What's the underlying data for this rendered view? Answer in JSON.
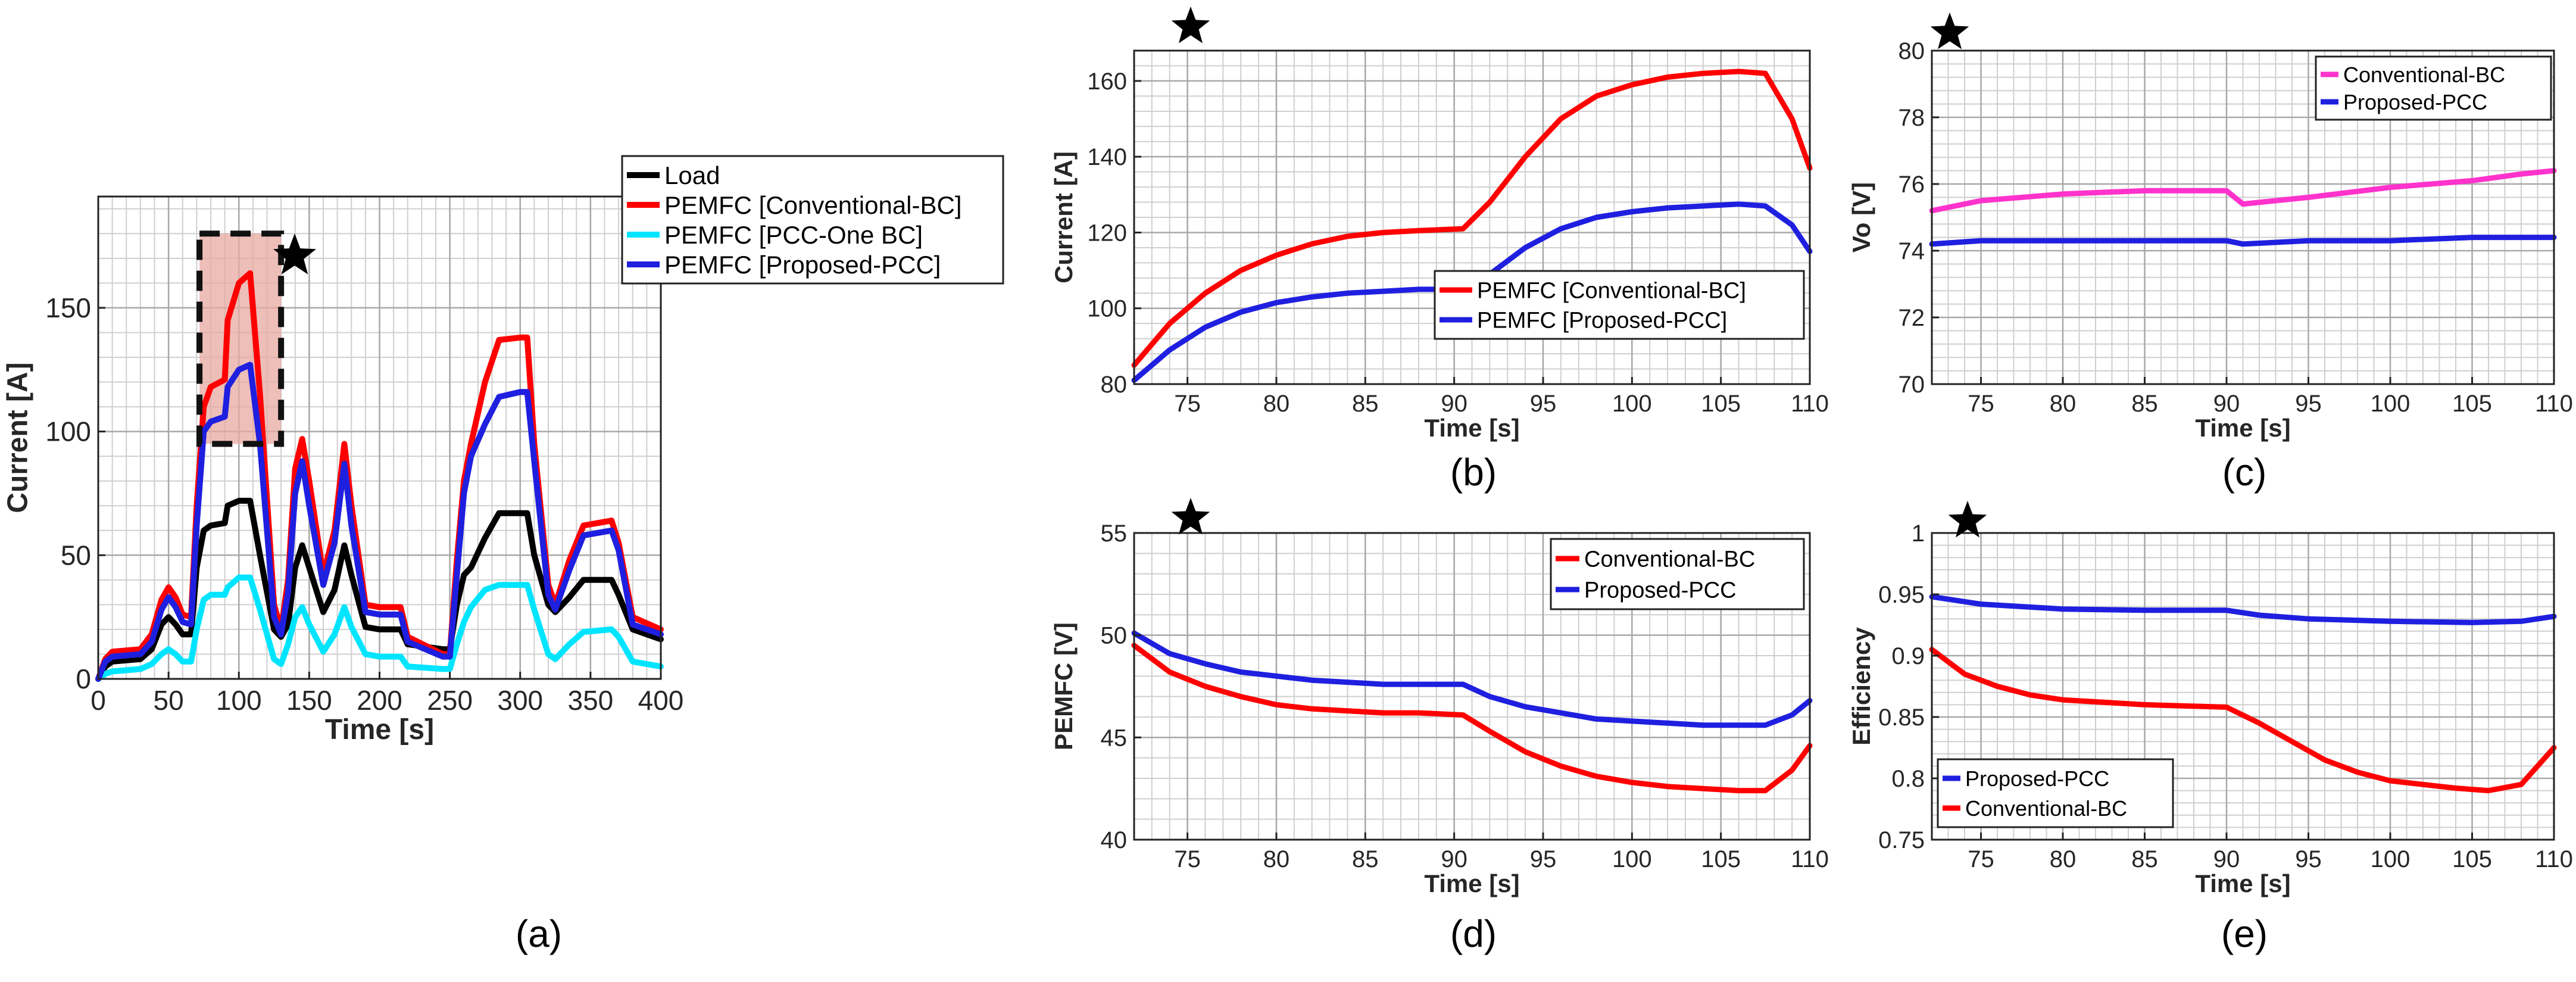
{
  "chart_data": [
    {
      "panel_label": "(a)",
      "type": "line",
      "xlabel": "Time [s]",
      "ylabel": "Current [A]",
      "xlim": [
        0,
        400
      ],
      "ylim": [
        0,
        195
      ],
      "xticks": [
        0,
        50,
        100,
        150,
        200,
        250,
        300,
        350,
        400
      ],
      "yticks": [
        0,
        50,
        100,
        150
      ],
      "grid": true,
      "legend_position": "top-right",
      "annotation": "dashed box with star highlighting 72–130 s, 95–180 A",
      "series": [
        {
          "name": "Load",
          "color": "#000000",
          "x": [
            0,
            5,
            10,
            30,
            38,
            45,
            50,
            55,
            60,
            66,
            70,
            75,
            80,
            90,
            92,
            100,
            108,
            115,
            125,
            130,
            135,
            140,
            145,
            150,
            160,
            168,
            175,
            180,
            190,
            200,
            215,
            220,
            245,
            250,
            255,
            260,
            265,
            275,
            285,
            300,
            305,
            310,
            320,
            325,
            335,
            345,
            365,
            370,
            380,
            400
          ],
          "y": [
            0,
            5,
            7,
            8,
            12,
            22,
            25,
            22,
            18,
            18,
            45,
            60,
            62,
            63,
            70,
            72,
            72,
            50,
            20,
            17,
            22,
            45,
            54,
            45,
            27,
            36,
            54,
            42,
            21,
            20,
            20,
            14,
            12,
            12,
            30,
            42,
            45,
            57,
            67,
            67,
            67,
            50,
            30,
            27,
            33,
            40,
            40,
            34,
            20,
            16
          ]
        },
        {
          "name": "PEMFC [Conventional-BC]",
          "color": "#ff0000",
          "x": [
            0,
            5,
            10,
            30,
            38,
            45,
            50,
            55,
            60,
            66,
            70,
            75,
            80,
            90,
            92,
            100,
            108,
            115,
            125,
            130,
            135,
            140,
            145,
            150,
            160,
            168,
            175,
            180,
            190,
            200,
            215,
            220,
            245,
            250,
            255,
            260,
            265,
            275,
            285,
            300,
            305,
            310,
            320,
            325,
            335,
            345,
            365,
            370,
            380,
            400
          ],
          "y": [
            0,
            8,
            11,
            12,
            18,
            32,
            37,
            33,
            26,
            25,
            70,
            110,
            118,
            121,
            145,
            160,
            164,
            115,
            30,
            20,
            40,
            85,
            97,
            80,
            42,
            60,
            95,
            70,
            30,
            29,
            29,
            17,
            10,
            10,
            48,
            80,
            95,
            120,
            137,
            138,
            138,
            95,
            38,
            30,
            48,
            62,
            64,
            55,
            25,
            20
          ]
        },
        {
          "name": "PEMFC [PCC-One BC]",
          "color": "#00e5ff",
          "x": [
            0,
            5,
            10,
            30,
            38,
            45,
            50,
            55,
            60,
            66,
            70,
            75,
            80,
            90,
            92,
            100,
            108,
            115,
            125,
            130,
            135,
            140,
            145,
            150,
            160,
            168,
            175,
            180,
            190,
            200,
            215,
            220,
            245,
            250,
            255,
            260,
            265,
            275,
            285,
            300,
            305,
            310,
            320,
            325,
            335,
            345,
            365,
            370,
            380,
            400
          ],
          "y": [
            0,
            2,
            3,
            4,
            6,
            10,
            12,
            10,
            7,
            7,
            20,
            32,
            34,
            34,
            37,
            41,
            41,
            28,
            8,
            6,
            14,
            25,
            29,
            22,
            11,
            18,
            29,
            21,
            10,
            9,
            9,
            5,
            4,
            4,
            14,
            23,
            29,
            36,
            38,
            38,
            38,
            28,
            10,
            8,
            14,
            19,
            20,
            17,
            7,
            5
          ]
        },
        {
          "name": "PEMFC [Proposed-PCC]",
          "color": "#1f1fe0",
          "x": [
            0,
            5,
            10,
            30,
            38,
            45,
            50,
            55,
            60,
            66,
            70,
            75,
            80,
            90,
            92,
            100,
            108,
            115,
            125,
            130,
            135,
            140,
            145,
            150,
            160,
            168,
            175,
            180,
            190,
            200,
            215,
            220,
            245,
            250,
            255,
            260,
            265,
            275,
            285,
            300,
            305,
            310,
            320,
            325,
            335,
            345,
            365,
            370,
            380,
            400
          ],
          "y": [
            0,
            7,
            9,
            10,
            15,
            28,
            33,
            29,
            23,
            22,
            62,
            100,
            104,
            106,
            118,
            125,
            127,
            95,
            25,
            18,
            35,
            75,
            88,
            70,
            38,
            55,
            87,
            62,
            27,
            26,
            26,
            15,
            9,
            9,
            42,
            75,
            90,
            103,
            114,
            116,
            116,
            88,
            34,
            28,
            44,
            58,
            60,
            52,
            22,
            18
          ]
        }
      ]
    },
    {
      "panel_label": "(b)",
      "type": "line",
      "xlabel": "Time [s]",
      "ylabel": "Current [A]",
      "xlim": [
        72,
        110
      ],
      "ylim": [
        80,
        168
      ],
      "xticks": [
        75,
        80,
        85,
        90,
        95,
        100,
        105,
        110
      ],
      "yticks": [
        80,
        100,
        120,
        140,
        160
      ],
      "grid": true,
      "legend_position": "bottom-right",
      "series": [
        {
          "name": "PEMFC [Conventional-BC]",
          "color": "#ff0000",
          "x": [
            72,
            74,
            76,
            78,
            80,
            82,
            84,
            86,
            88,
            90.5,
            92,
            94,
            96,
            98,
            100,
            102,
            104,
            106,
            107.5,
            109,
            110
          ],
          "y": [
            85,
            96,
            104,
            110,
            114,
            117,
            119,
            120,
            120.5,
            121,
            128,
            140,
            150,
            156,
            159,
            161,
            162,
            162.5,
            162,
            150,
            137
          ]
        },
        {
          "name": "PEMFC [Proposed-PCC]",
          "color": "#1f1fe0",
          "x": [
            72,
            74,
            76,
            78,
            80,
            82,
            84,
            86,
            88,
            90.5,
            92,
            94,
            96,
            98,
            100,
            102,
            104,
            106,
            107.5,
            109,
            110
          ],
          "y": [
            81,
            89,
            95,
            99,
            101.5,
            103,
            104,
            104.5,
            105,
            105,
            109,
            116,
            121,
            124,
            125.5,
            126.5,
            127,
            127.5,
            127,
            122,
            115
          ]
        }
      ]
    },
    {
      "panel_label": "(c)",
      "type": "line",
      "xlabel": "Time [s]",
      "ylabel": "Vo [V]",
      "xlim": [
        72,
        110
      ],
      "ylim": [
        70,
        80
      ],
      "xticks": [
        75,
        80,
        85,
        90,
        95,
        100,
        105,
        110
      ],
      "yticks": [
        70,
        72,
        74,
        76,
        78,
        80
      ],
      "grid": true,
      "legend_position": "top-right",
      "series": [
        {
          "name": "Conventional-BC",
          "color": "#ff33cc",
          "x": [
            72,
            75,
            80,
            85,
            90,
            91,
            95,
            100,
            105,
            108,
            110
          ],
          "y": [
            75.2,
            75.5,
            75.7,
            75.8,
            75.8,
            75.4,
            75.6,
            75.9,
            76.1,
            76.3,
            76.4
          ]
        },
        {
          "name": "Proposed-PCC",
          "color": "#1f1fe0",
          "x": [
            72,
            75,
            80,
            85,
            90,
            91,
            95,
            100,
            105,
            110
          ],
          "y": [
            74.2,
            74.3,
            74.3,
            74.3,
            74.3,
            74.2,
            74.3,
            74.3,
            74.4,
            74.4
          ]
        }
      ]
    },
    {
      "panel_label": "(d)",
      "type": "line",
      "xlabel": "Time [s]",
      "ylabel": "PEMFC [V]",
      "xlim": [
        72,
        110
      ],
      "ylim": [
        40,
        55
      ],
      "xticks": [
        75,
        80,
        85,
        90,
        95,
        100,
        105,
        110
      ],
      "yticks": [
        40,
        45,
        50,
        55
      ],
      "grid": true,
      "legend_position": "top-right",
      "series": [
        {
          "name": "Conventional-BC",
          "color": "#ff0000",
          "x": [
            72,
            74,
            76,
            78,
            80,
            82,
            84,
            86,
            88,
            90.5,
            92,
            94,
            96,
            98,
            100,
            102,
            104,
            106,
            107.5,
            109,
            110
          ],
          "y": [
            49.5,
            48.2,
            47.5,
            47.0,
            46.6,
            46.4,
            46.3,
            46.2,
            46.2,
            46.1,
            45.3,
            44.3,
            43.6,
            43.1,
            42.8,
            42.6,
            42.5,
            42.4,
            42.4,
            43.4,
            44.6
          ]
        },
        {
          "name": "Proposed-PCC",
          "color": "#1f1fe0",
          "x": [
            72,
            74,
            76,
            78,
            80,
            82,
            84,
            86,
            88,
            90.5,
            92,
            94,
            96,
            98,
            100,
            102,
            104,
            106,
            107.5,
            109,
            110
          ],
          "y": [
            50.1,
            49.1,
            48.6,
            48.2,
            48.0,
            47.8,
            47.7,
            47.6,
            47.6,
            47.6,
            47.0,
            46.5,
            46.2,
            45.9,
            45.8,
            45.7,
            45.6,
            45.6,
            45.6,
            46.1,
            46.8
          ]
        }
      ]
    },
    {
      "panel_label": "(e)",
      "type": "line",
      "xlabel": "Time [s]",
      "ylabel": "Efficiency",
      "xlim": [
        72,
        110
      ],
      "ylim": [
        0.75,
        1.0
      ],
      "xticks": [
        75,
        80,
        85,
        90,
        95,
        100,
        105,
        110
      ],
      "yticks": [
        0.75,
        0.8,
        0.85,
        0.9,
        0.95,
        1
      ],
      "grid": true,
      "legend_position": "bottom-left",
      "series": [
        {
          "name": "Proposed-PCC",
          "color": "#1f1fe0",
          "x": [
            72,
            75,
            80,
            85,
            90,
            92,
            95,
            100,
            105,
            108,
            110
          ],
          "y": [
            0.948,
            0.942,
            0.938,
            0.937,
            0.937,
            0.933,
            0.93,
            0.928,
            0.927,
            0.928,
            0.932
          ]
        },
        {
          "name": "Conventional-BC",
          "color": "#ff0000",
          "x": [
            72,
            74,
            76,
            78,
            80,
            85,
            90,
            92,
            94,
            96,
            98,
            100,
            102,
            104,
            106,
            108,
            110
          ],
          "y": [
            0.905,
            0.885,
            0.875,
            0.868,
            0.864,
            0.86,
            0.858,
            0.845,
            0.83,
            0.815,
            0.805,
            0.798,
            0.795,
            0.792,
            0.79,
            0.795,
            0.825
          ]
        }
      ]
    }
  ]
}
